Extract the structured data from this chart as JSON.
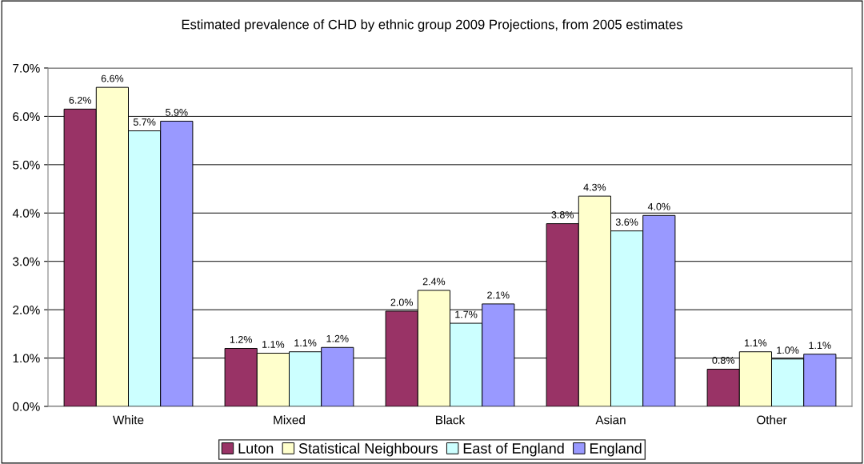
{
  "chart_data": {
    "type": "bar",
    "title": "Estimated prevalence of CHD by ethnic group 2009 Projections, from 2005 estimates",
    "categories": [
      "White",
      "Mixed",
      "Black",
      "Asian",
      "Other"
    ],
    "series": [
      {
        "name": "Luton",
        "color": "#993366",
        "values": [
          6.15,
          1.2,
          1.97,
          3.78,
          0.77
        ],
        "value_labels": [
          "6.2%",
          "1.2%",
          "2.0%",
          "3.8%",
          "0.8%"
        ]
      },
      {
        "name": "Statistical Neighbours",
        "color": "#ffffcc",
        "values": [
          6.6,
          1.1,
          2.4,
          4.35,
          1.13
        ],
        "value_labels": [
          "6.6%",
          "1.1%",
          "2.4%",
          "4.3%",
          "1.1%"
        ]
      },
      {
        "name": "East of England",
        "color": "#ccffff",
        "values": [
          5.7,
          1.13,
          1.72,
          3.63,
          0.98
        ],
        "value_labels": [
          "5.7%",
          "1.1%",
          "1.7%",
          "3.6%",
          "1.0%"
        ]
      },
      {
        "name": "England",
        "color": "#9999ff",
        "values": [
          5.9,
          1.22,
          2.12,
          3.95,
          1.08
        ],
        "value_labels": [
          "5.9%",
          "1.2%",
          "2.1%",
          "4.0%",
          "1.1%"
        ]
      }
    ],
    "ylim": [
      0,
      7
    ],
    "yticks": [
      {
        "value": 0,
        "label": "0.0%"
      },
      {
        "value": 1,
        "label": "1.0%"
      },
      {
        "value": 2,
        "label": "2.0%"
      },
      {
        "value": 3,
        "label": "3.0%"
      },
      {
        "value": 4,
        "label": "4.0%"
      },
      {
        "value": 5,
        "label": "5.0%"
      },
      {
        "value": 6,
        "label": "6.0%"
      },
      {
        "value": 7,
        "label": "7.0%"
      }
    ],
    "grid": "y",
    "legend": "bottom"
  }
}
